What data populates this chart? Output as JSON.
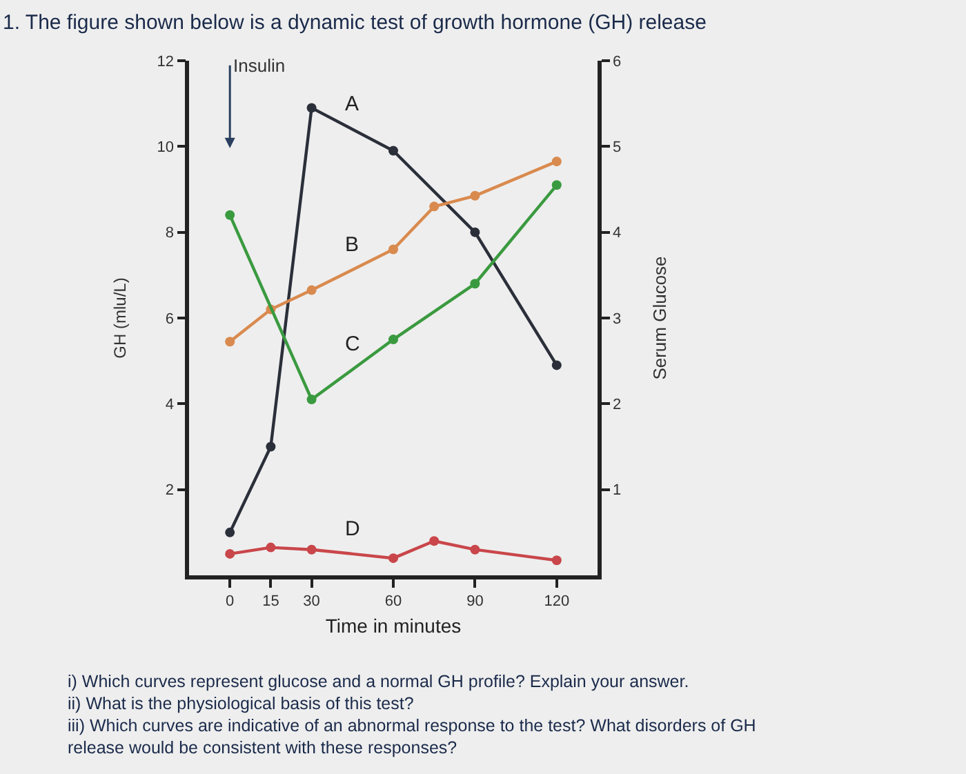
{
  "chart_data": {
    "type": "line",
    "title": "1. The figure shown below is a dynamic test of growth hormone (GH) release",
    "xlabel": "Time in minutes",
    "ylabel": "GH (mlu/L)",
    "y2label": "Serum Glucose",
    "x": [
      0,
      15,
      30,
      60,
      90,
      120
    ],
    "series": [
      {
        "name": "A",
        "color": "#2b2f3a",
        "values": [
          1.0,
          3.0,
          10.9,
          9.9,
          8.0,
          4.9
        ]
      },
      {
        "name": "B",
        "color": "#d98a4e",
        "x": [
          0,
          15,
          30,
          60,
          75,
          90,
          120
        ],
        "values": [
          5.45,
          6.2,
          6.65,
          7.6,
          8.6,
          8.85,
          9.65
        ]
      },
      {
        "name": "C",
        "color": "#3a9a3f",
        "x": [
          0,
          30,
          60,
          90,
          120
        ],
        "values": [
          8.4,
          4.1,
          5.5,
          6.8,
          9.1
        ]
      },
      {
        "name": "D",
        "color": "#c9464a",
        "x": [
          0,
          15,
          30,
          60,
          75,
          90,
          120
        ],
        "values": [
          0.5,
          0.65,
          0.6,
          0.4,
          0.8,
          0.6,
          0.35
        ]
      }
    ],
    "annotations": [
      "Insulin",
      "i) Which curves represent glucose and a normal GH profile? Explain your answer.",
      "ii) What is the physiological basis of this test?",
      "iii) Which curves are indicative of an abnormal response to the test? What disorders of GH release would be consistent with these responses?"
    ],
    "xlim": [
      -15,
      135
    ],
    "xticks": [
      0,
      15,
      30,
      60,
      90,
      120
    ],
    "ylim": [
      0,
      12
    ],
    "yticks": [
      2,
      4,
      6,
      8,
      10,
      12
    ],
    "y2lim": [
      0,
      6
    ],
    "y2ticks": [
      1,
      2,
      3,
      4,
      5,
      6
    ],
    "marker": "circle",
    "line_style": "solid",
    "legend": false,
    "grid": false
  }
}
